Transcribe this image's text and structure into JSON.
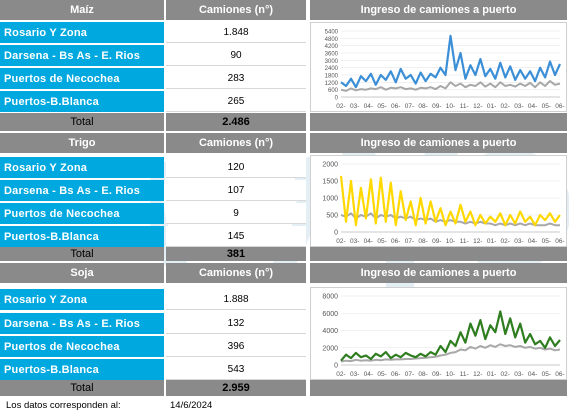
{
  "sections": [
    {
      "crop": "Maíz",
      "camiones_header": "Camiones (n°)",
      "chart_title": "Ingreso de camiones a puerto",
      "rows": [
        {
          "name": "Rosario Y Zona",
          "value": "1.848"
        },
        {
          "name": "Darsena - Bs As - E. Rios",
          "value": "90"
        },
        {
          "name": "Puertos de Necochea",
          "value": "283"
        },
        {
          "name": "Puertos-B.Blanca",
          "value": "265"
        }
      ],
      "total_label": "Total",
      "total_value": "2.486"
    },
    {
      "crop": "Trigo",
      "camiones_header": "Camiones (n°)",
      "chart_title": "Ingreso de camiones a puerto",
      "rows": [
        {
          "name": "Rosario Y Zona",
          "value": "120"
        },
        {
          "name": "Darsena - Bs As - E. Rios",
          "value": "107"
        },
        {
          "name": "Puertos de Necochea",
          "value": "9"
        },
        {
          "name": "Puertos-B.Blanca",
          "value": "145"
        }
      ],
      "total_label": "Total",
      "total_value": "381"
    },
    {
      "crop": "Soja",
      "camiones_header": "Camiones (n°)",
      "chart_title": "Ingreso de camiones a puerto",
      "rows": [
        {
          "name": "Rosario Y Zona",
          "value": "1.888"
        },
        {
          "name": "Darsena - Bs As - E. Rios",
          "value": "132"
        },
        {
          "name": "Puertos de Necochea",
          "value": "396"
        },
        {
          "name": "Puertos-B.Blanca",
          "value": "543"
        }
      ],
      "total_label": "Total",
      "total_value": "2.959"
    }
  ],
  "footer": {
    "label": "Los datos corresponden al:",
    "date": "14/6/2024"
  },
  "colors": {
    "header": "#8a8a8a",
    "row": "#00a8e0",
    "maiz": "#3b8fd6",
    "trigo": "#ffd800",
    "soja": "#2e7d1f",
    "baseline": "#a8a8a8"
  },
  "chart_data": [
    {
      "type": "line",
      "title": "Ingreso de camiones a puerto",
      "ylim": [
        0,
        5400
      ],
      "yticks": [
        "0",
        "600",
        "1200",
        "1800",
        "2400",
        "3000",
        "3600",
        "4200",
        "4800",
        "5400"
      ],
      "xticks": [
        "02-",
        "03-",
        "04-",
        "05-",
        "06-",
        "07-",
        "08-",
        "09-",
        "10-",
        "11-",
        "12-",
        "01-",
        "02-",
        "03-",
        "04-",
        "05-",
        "06-"
      ],
      "series": [
        {
          "color": "#3b8fd6",
          "values": [
            1200,
            900,
            1500,
            800,
            1700,
            1300,
            1900,
            1000,
            1800,
            1400,
            2100,
            1200,
            2300,
            1500,
            1800,
            1100,
            2000,
            1300,
            1900,
            1600,
            2400,
            1800,
            5000,
            2200,
            3600,
            1500,
            2600,
            1800,
            3100,
            1700,
            2300,
            1500,
            2800,
            1600,
            2500,
            1400,
            2200,
            1500,
            2100,
            1300,
            2400,
            1600,
            2900,
            1800,
            2700
          ]
        },
        {
          "color": "#a8a8a8",
          "values": [
            600,
            500,
            700,
            550,
            650,
            600,
            700,
            650,
            800,
            600,
            750,
            700,
            800,
            650,
            700,
            600,
            750,
            700,
            800,
            650,
            900,
            700,
            1200,
            900,
            1100,
            800,
            1000,
            900,
            1200,
            850,
            1100,
            800,
            1200,
            900,
            1000,
            850,
            1100,
            900,
            1150,
            800,
            1200,
            900,
            1300,
            1000,
            1100
          ]
        }
      ]
    },
    {
      "type": "line",
      "title": "Ingreso de camiones a puerto",
      "ylim": [
        0,
        2000
      ],
      "yticks": [
        "0",
        "500",
        "1000",
        "1500",
        "2000"
      ],
      "xticks": [
        "02-",
        "03-",
        "04-",
        "05-",
        "06-",
        "07-",
        "08-",
        "09-",
        "10-",
        "11-",
        "12-",
        "01-",
        "02-",
        "03-",
        "04-",
        "05-",
        "06-"
      ],
      "series": [
        {
          "color": "#ffd800",
          "values": [
            1650,
            300,
            1500,
            200,
            1300,
            400,
            1550,
            250,
            1600,
            300,
            1450,
            200,
            1200,
            350,
            900,
            200,
            1000,
            250,
            900,
            300,
            700,
            200,
            600,
            250,
            800,
            300,
            600,
            200,
            500,
            250,
            450,
            300,
            550,
            200,
            500,
            250,
            600,
            300,
            450,
            200,
            500,
            350,
            550,
            300,
            500
          ]
        },
        {
          "color": "#a8a8a8",
          "values": [
            500,
            450,
            550,
            400,
            500,
            450,
            550,
            400,
            500,
            450,
            500,
            400,
            450,
            400,
            450,
            350,
            400,
            350,
            400,
            300,
            350,
            300,
            350,
            300,
            300,
            250,
            300,
            250,
            300,
            250,
            250,
            200,
            250,
            200,
            250,
            200,
            250,
            200,
            250,
            200,
            200,
            200,
            250,
            200,
            200
          ]
        }
      ]
    },
    {
      "type": "line",
      "title": "Ingreso de camiones a puerto",
      "ylim": [
        0,
        8000
      ],
      "yticks": [
        "0",
        "2000",
        "4000",
        "6000",
        "8000"
      ],
      "xticks": [
        "02-",
        "03-",
        "04-",
        "05-",
        "06-",
        "07-",
        "08-",
        "09-",
        "10-",
        "11-",
        "12-",
        "01-",
        "02-",
        "03-",
        "04-",
        "05-",
        "06-"
      ],
      "series": [
        {
          "color": "#2e7d1f",
          "values": [
            500,
            1200,
            800,
            1400,
            900,
            1100,
            700,
            1300,
            1000,
            1500,
            800,
            1200,
            900,
            1400,
            1100,
            900,
            1300,
            1000,
            1500,
            1200,
            2200,
            1500,
            2800,
            2200,
            3800,
            2600,
            4800,
            3400,
            5200,
            3000,
            4600,
            3800,
            6200,
            3600,
            5400,
            3200,
            4800,
            2600,
            3600,
            2400,
            2800,
            2000,
            3200,
            2200,
            2900
          ]
        },
        {
          "color": "#a8a8a8",
          "values": [
            400,
            500,
            450,
            600,
            500,
            550,
            500,
            600,
            550,
            650,
            600,
            650,
            650,
            700,
            700,
            750,
            800,
            850,
            900,
            950,
            1100,
            1200,
            1400,
            1500,
            1800,
            1700,
            2100,
            1900,
            2200,
            2000,
            2300,
            2100,
            2400,
            2200,
            2300,
            2100,
            2200,
            2000,
            2100,
            1900,
            2000,
            1800,
            1900,
            1700,
            1800
          ]
        }
      ]
    }
  ]
}
